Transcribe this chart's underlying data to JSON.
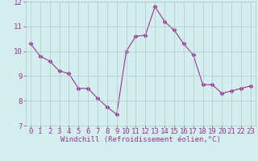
{
  "x": [
    0,
    1,
    2,
    3,
    4,
    5,
    6,
    7,
    8,
    9,
    10,
    11,
    12,
    13,
    14,
    15,
    16,
    17,
    18,
    19,
    20,
    21,
    22,
    23
  ],
  "y": [
    10.3,
    9.8,
    9.6,
    9.2,
    9.1,
    8.5,
    8.5,
    8.1,
    7.75,
    7.45,
    10.0,
    10.6,
    10.65,
    11.8,
    11.2,
    10.85,
    10.3,
    9.85,
    8.65,
    8.65,
    8.3,
    8.4,
    8.5,
    8.6
  ],
  "xlim": [
    -0.5,
    23.5
  ],
  "ylim": [
    7,
    12
  ],
  "yticks": [
    7,
    8,
    9,
    10,
    11,
    12
  ],
  "xticks": [
    0,
    1,
    2,
    3,
    4,
    5,
    6,
    7,
    8,
    9,
    10,
    11,
    12,
    13,
    14,
    15,
    16,
    17,
    18,
    19,
    20,
    21,
    22,
    23
  ],
  "xlabel": "Windchill (Refroidissement éolien,°C)",
  "line_color": "#993399",
  "marker": "D",
  "marker_size": 2.5,
  "bg_color": "#d4eeed",
  "grid_color": "#b0c8c8",
  "tick_color": "#993399",
  "label_color": "#993399",
  "font_family": "monospace",
  "xlabel_fontsize": 6.5,
  "tick_fontsize": 6.5
}
